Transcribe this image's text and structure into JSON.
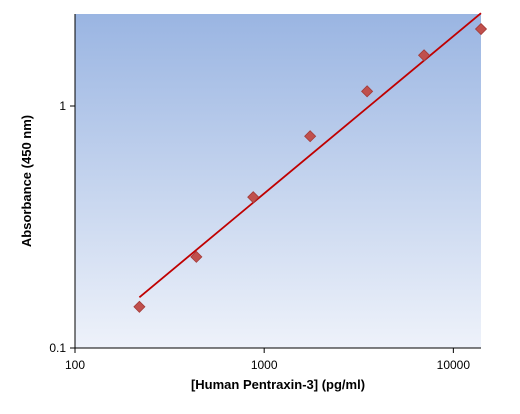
{
  "chart_data": {
    "type": "scatter",
    "title": "",
    "xlabel": "[Human Pentraxin-3] (pg/ml)",
    "ylabel": "Absorbance (450 nm)",
    "xscale": "log",
    "yscale": "log",
    "xlim": [
      100,
      14000
    ],
    "ylim": [
      0.1,
      2.4
    ],
    "x_ticks": [
      100,
      1000,
      10000
    ],
    "x_tick_labels": [
      "100",
      "1000",
      "10000"
    ],
    "y_ticks": [
      0.1,
      1
    ],
    "y_tick_labels": [
      "0.1",
      "1"
    ],
    "grid": false,
    "legend": "none",
    "background": "gradient blue (top) to pale blue (bottom)",
    "series": [
      {
        "kind": "points",
        "marker": "diamond",
        "color": "#c0504d",
        "x": [
          219,
          438,
          875,
          1750,
          3500,
          7000,
          14000
        ],
        "y": [
          0.148,
          0.238,
          0.42,
          0.75,
          1.15,
          1.62,
          2.08
        ]
      },
      {
        "kind": "fit-line",
        "color": "#c00000",
        "x": [
          219,
          14000
        ],
        "y": [
          0.162,
          2.42
        ]
      }
    ]
  },
  "colors": {
    "plot_top": "#9ab5e2",
    "plot_bottom": "#eef2fa",
    "marker": "#c0504d",
    "marker_edge": "#a33b38",
    "fit_line": "#c00000"
  }
}
